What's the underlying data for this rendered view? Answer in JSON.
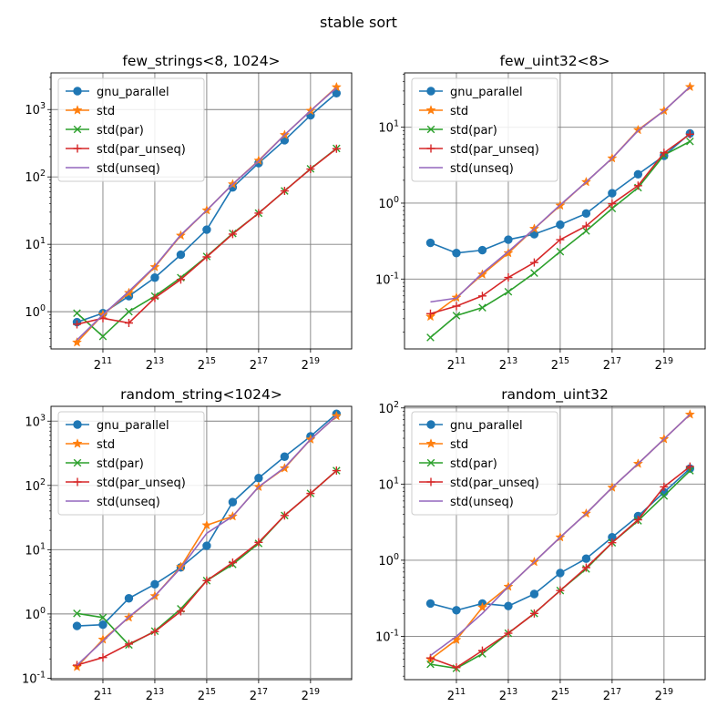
{
  "suptitle": "stable sort",
  "colors": {
    "gnu_parallel": "#1f77b4",
    "std": "#ff7f0e",
    "std_par": "#2ca02c",
    "std_par_unseq": "#d62728",
    "std_unseq": "#9467bd"
  },
  "chart_data": [
    {
      "type": "line",
      "title": "few_strings<8, 1024>",
      "xscale": "log2",
      "yscale": "log10",
      "xlim": [
        512,
        1572864
      ],
      "ylim": [
        0.28,
        3500
      ],
      "x_ticks": [
        2048,
        8192,
        32768,
        131072,
        524288
      ],
      "x_tick_labels": [
        "2^11",
        "2^13",
        "2^15",
        "2^17",
        "2^19"
      ],
      "y_ticks": [
        1,
        10,
        100,
        1000
      ],
      "y_tick_labels": [
        "10^0",
        "10^1",
        "10^2",
        "10^3"
      ],
      "grid": true,
      "legend": "upper left",
      "x": [
        1024,
        2048,
        4096,
        8192,
        16384,
        32768,
        65536,
        131072,
        262144,
        524288,
        1048576
      ],
      "series": [
        {
          "name": "gnu_parallel",
          "marker": "o",
          "values": [
            0.7,
            0.95,
            1.7,
            3.2,
            7.0,
            16.5,
            70,
            160,
            350,
            820,
            1750
          ]
        },
        {
          "name": "std",
          "marker": "*",
          "values": [
            0.35,
            0.9,
            1.9,
            4.6,
            13.5,
            32,
            78,
            175,
            420,
            960,
            2150
          ]
        },
        {
          "name": "std(par)",
          "marker": "x",
          "values": [
            0.95,
            0.43,
            1.0,
            1.7,
            3.2,
            6.6,
            14.5,
            29,
            62,
            132,
            265
          ]
        },
        {
          "name": "std(par_unseq)",
          "marker": "+",
          "values": [
            0.65,
            0.8,
            0.68,
            1.6,
            3.0,
            6.5,
            14.2,
            29,
            62,
            131,
            262
          ]
        },
        {
          "name": "std(unseq)",
          "marker": "none",
          "values": [
            0.38,
            0.9,
            2.0,
            4.7,
            13.8,
            32,
            78,
            172,
            420,
            960,
            2100
          ]
        }
      ]
    },
    {
      "type": "line",
      "title": "few_uint32<8>",
      "xscale": "log2",
      "yscale": "log10",
      "xlim": [
        512,
        1572864
      ],
      "ylim": [
        0.012,
        52
      ],
      "x_ticks": [
        2048,
        8192,
        32768,
        131072,
        524288
      ],
      "x_tick_labels": [
        "2^11",
        "2^13",
        "2^15",
        "2^17",
        "2^19"
      ],
      "y_ticks": [
        0.1,
        1,
        10
      ],
      "y_tick_labels": [
        "10^-1",
        "10^0",
        "10^1"
      ],
      "grid": true,
      "legend": "upper left",
      "x": [
        1024,
        2048,
        4096,
        8192,
        16384,
        32768,
        65536,
        131072,
        262144,
        524288,
        1048576
      ],
      "series": [
        {
          "name": "gnu_parallel",
          "marker": "o",
          "values": [
            0.3,
            0.22,
            0.24,
            0.33,
            0.39,
            0.52,
            0.73,
            1.35,
            2.4,
            4.2,
            8.3
          ]
        },
        {
          "name": "std",
          "marker": "*",
          "values": [
            0.032,
            0.057,
            0.115,
            0.22,
            0.46,
            0.93,
            1.9,
            3.9,
            9.2,
            16.5,
            34
          ]
        },
        {
          "name": "std(par)",
          "marker": "x",
          "values": [
            0.017,
            0.033,
            0.042,
            0.068,
            0.12,
            0.23,
            0.43,
            0.85,
            1.6,
            4.3,
            6.5
          ]
        },
        {
          "name": "std(par_unseq)",
          "marker": "+",
          "values": [
            0.035,
            0.044,
            0.06,
            0.105,
            0.165,
            0.33,
            0.5,
            0.98,
            1.7,
            4.6,
            8.1
          ]
        },
        {
          "name": "std(unseq)",
          "marker": "none",
          "values": [
            0.05,
            0.056,
            0.12,
            0.23,
            0.46,
            0.95,
            1.9,
            3.9,
            9.0,
            16.5,
            34
          ]
        }
      ]
    },
    {
      "type": "line",
      "title": "random_string<1024>",
      "xscale": "log2",
      "yscale": "log10",
      "xlim": [
        512,
        1572864
      ],
      "ylim": [
        0.095,
        1700
      ],
      "x_ticks": [
        2048,
        8192,
        32768,
        131072,
        524288
      ],
      "x_tick_labels": [
        "2^11",
        "2^13",
        "2^15",
        "2^17",
        "2^19"
      ],
      "y_ticks": [
        0.1,
        1,
        10,
        100,
        1000
      ],
      "y_tick_labels": [
        "10^-1",
        "10^0",
        "10^1",
        "10^2",
        "10^3"
      ],
      "grid": true,
      "legend": "upper left",
      "x": [
        1024,
        2048,
        4096,
        8192,
        16384,
        32768,
        65536,
        131072,
        262144,
        524288,
        1048576
      ],
      "series": [
        {
          "name": "gnu_parallel",
          "marker": "o",
          "values": [
            0.65,
            0.68,
            1.75,
            2.9,
            5.3,
            11.5,
            55,
            130,
            280,
            580,
            1300
          ]
        },
        {
          "name": "std",
          "marker": "*",
          "values": [
            0.15,
            0.4,
            0.88,
            1.9,
            5.4,
            24,
            33,
            95,
            185,
            520,
            1200
          ]
        },
        {
          "name": "std(par)",
          "marker": "x",
          "values": [
            1.02,
            0.88,
            0.33,
            0.54,
            1.2,
            3.3,
            5.9,
            12.5,
            34,
            75,
            170
          ]
        },
        {
          "name": "std(par_unseq)",
          "marker": "+",
          "values": [
            0.16,
            0.21,
            0.34,
            0.53,
            1.1,
            3.3,
            6.3,
            13,
            34,
            75,
            170
          ]
        },
        {
          "name": "std(unseq)",
          "marker": "none",
          "values": [
            0.16,
            0.38,
            0.9,
            1.9,
            5.2,
            18,
            33,
            95,
            190,
            520,
            1200
          ]
        }
      ]
    },
    {
      "type": "line",
      "title": "random_uint32",
      "xscale": "log2",
      "yscale": "log10",
      "xlim": [
        512,
        1572864
      ],
      "ylim": [
        0.027,
        105
      ],
      "x_ticks": [
        2048,
        8192,
        32768,
        131072,
        524288
      ],
      "x_tick_labels": [
        "2^11",
        "2^13",
        "2^15",
        "2^17",
        "2^19"
      ],
      "y_ticks": [
        0.1,
        1,
        10,
        100
      ],
      "y_tick_labels": [
        "10^-1",
        "10^0",
        "10^1",
        "10^2"
      ],
      "grid": true,
      "legend": "upper left",
      "x": [
        1024,
        2048,
        4096,
        8192,
        16384,
        32768,
        65536,
        131072,
        262144,
        524288,
        1048576
      ],
      "series": [
        {
          "name": "gnu_parallel",
          "marker": "o",
          "values": [
            0.27,
            0.22,
            0.27,
            0.25,
            0.36,
            0.68,
            1.05,
            2.0,
            3.8,
            7.8,
            16
          ]
        },
        {
          "name": "std",
          "marker": "*",
          "values": [
            0.05,
            0.09,
            0.24,
            0.45,
            0.95,
            2.0,
            4.1,
            9.0,
            18.5,
            39,
            82
          ]
        },
        {
          "name": "std(par)",
          "marker": "x",
          "values": [
            0.043,
            0.038,
            0.059,
            0.11,
            0.2,
            0.4,
            0.77,
            1.7,
            3.3,
            7.0,
            15
          ]
        },
        {
          "name": "std(par_unseq)",
          "marker": "+",
          "values": [
            0.052,
            0.039,
            0.065,
            0.11,
            0.2,
            0.4,
            0.8,
            1.7,
            3.4,
            9.2,
            17
          ]
        },
        {
          "name": "std(unseq)",
          "marker": "none",
          "values": [
            0.056,
            0.1,
            0.2,
            0.45,
            0.95,
            2.0,
            4.1,
            9.0,
            18.5,
            39,
            82
          ]
        }
      ]
    }
  ]
}
